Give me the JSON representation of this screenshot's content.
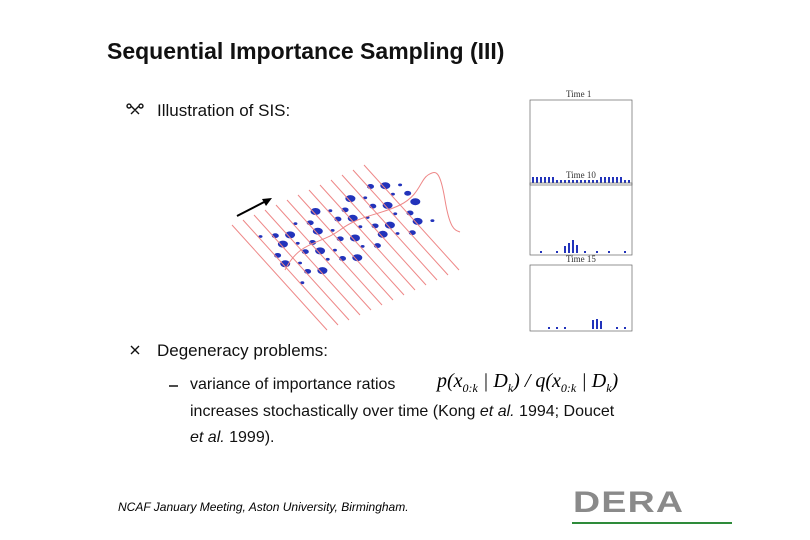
{
  "slide": {
    "title": "Sequential Importance Sampling (III)",
    "bullets": [
      {
        "text": "Illustration of SIS:"
      },
      {
        "text": "Degeneracy problems:",
        "sub": {
          "lead": "variance of importance ratios",
          "formula": [
            "p(x",
            "0:k",
            " | D",
            "k",
            ") / q(x",
            "0:k",
            " | D",
            "k",
            ")"
          ],
          "lines": [
            [
              "increases stochastically over time (Kong ",
              "et al.",
              " 1994; Doucet"
            ],
            [
              "et al.",
              " 1999)."
            ]
          ]
        }
      }
    ],
    "plots": [
      "Time 1",
      "Time 10",
      "Time 15"
    ],
    "footer": "NCAF January Meeting, Aston University, Birmingham.",
    "logo": "DERA"
  }
}
